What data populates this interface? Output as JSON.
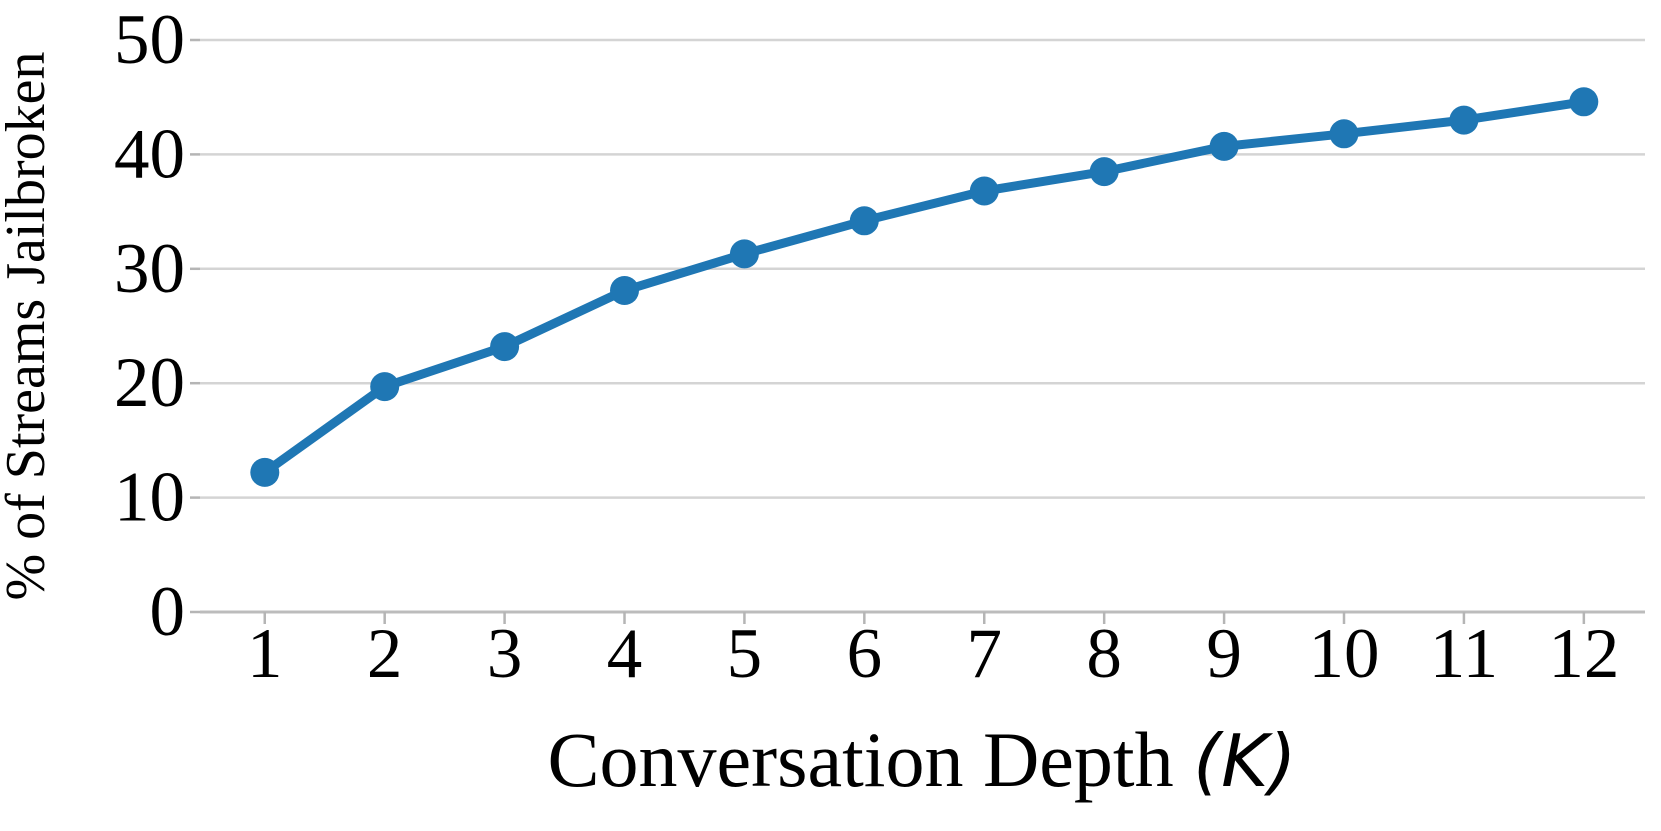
{
  "chart_data": {
    "type": "line",
    "title": "",
    "xlabel": "Conversation Depth (K)",
    "xlabel_parts": {
      "prefix": "Conversation Depth ",
      "open_paren": "(",
      "variable": "K",
      "close_paren": ")"
    },
    "ylabel": "% of Streams Jailbroken",
    "x": [
      1,
      2,
      3,
      4,
      5,
      6,
      7,
      8,
      9,
      10,
      11,
      12
    ],
    "series": [
      {
        "name": "% of Streams Jailbroken",
        "values": [
          12.2,
          19.7,
          23.2,
          28.1,
          31.3,
          34.2,
          36.8,
          38.5,
          40.7,
          41.8,
          43.0,
          44.6
        ]
      }
    ],
    "xticks": [
      1,
      2,
      3,
      4,
      5,
      6,
      7,
      8,
      9,
      10,
      11,
      12
    ],
    "yticks": [
      0,
      10,
      20,
      30,
      40,
      50
    ],
    "xlim": [
      0.46,
      12.51
    ],
    "ylim": [
      0,
      50
    ],
    "grid": "horizontal-only",
    "legend": "none",
    "marker": "circle",
    "colors": {
      "line": "#1f77b4",
      "marker": "#1f77b4",
      "gridline": "#d4d4d4",
      "axis_line": "#bcbcbc",
      "tick": "#b5b5b5",
      "text": "#000000",
      "background": "#ffffff"
    }
  }
}
